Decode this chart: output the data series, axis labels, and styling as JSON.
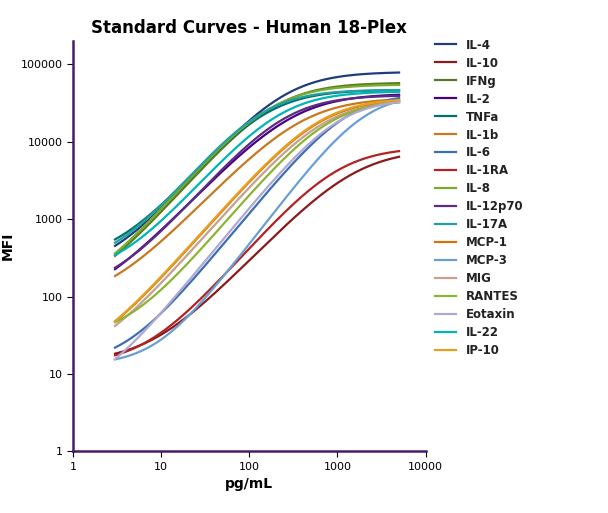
{
  "title": "Standard Curves - Human 18-Plex",
  "xlabel": "pg/mL",
  "ylabel": "MFI",
  "xlim": [
    1,
    10000
  ],
  "ylim": [
    1,
    200000
  ],
  "series": [
    {
      "name": "IL-4",
      "color": "#1f3d7a",
      "logEC50": 2.4,
      "hill": 1.3,
      "bottom": 200,
      "top": 80000
    },
    {
      "name": "IL-10",
      "color": "#8b1a1a",
      "logEC50": 3.2,
      "hill": 1.2,
      "bottom": 14,
      "top": 8000
    },
    {
      "name": "IFNg",
      "color": "#5a7a1f",
      "logEC50": 2.3,
      "hill": 1.3,
      "bottom": 90,
      "top": 58000
    },
    {
      "name": "IL-2",
      "color": "#4b0082",
      "logEC50": 2.5,
      "hill": 1.2,
      "bottom": 70,
      "top": 42000
    },
    {
      "name": "TNFa",
      "color": "#007070",
      "logEC50": 2.2,
      "hill": 1.3,
      "bottom": 280,
      "top": 47000
    },
    {
      "name": "IL-1b",
      "color": "#c87820",
      "logEC50": 2.6,
      "hill": 1.2,
      "bottom": 80,
      "top": 37000
    },
    {
      "name": "IL-6",
      "color": "#3a6eb5",
      "logEC50": 3.1,
      "hill": 1.4,
      "bottom": 13,
      "top": 42000
    },
    {
      "name": "IL-1RA",
      "color": "#b22222",
      "logEC50": 3.0,
      "hill": 1.3,
      "bottom": 13,
      "top": 8500
    },
    {
      "name": "IL-8",
      "color": "#7aab2a",
      "logEC50": 2.25,
      "hill": 1.3,
      "bottom": 90,
      "top": 55000
    },
    {
      "name": "IL-12p70",
      "color": "#5a2d82",
      "logEC50": 2.4,
      "hill": 1.3,
      "bottom": 110,
      "top": 40000
    },
    {
      "name": "IL-17A",
      "color": "#20a0a0",
      "logEC50": 2.15,
      "hill": 1.35,
      "bottom": 240,
      "top": 47000
    },
    {
      "name": "MCP-1",
      "color": "#d4720a",
      "logEC50": 2.8,
      "hill": 1.3,
      "bottom": 13,
      "top": 36000
    },
    {
      "name": "MCP-3",
      "color": "#6a9fd4",
      "logEC50": 3.3,
      "hill": 1.5,
      "bottom": 13,
      "top": 42000
    },
    {
      "name": "MIG",
      "color": "#c8a090",
      "logEC50": 2.85,
      "hill": 1.3,
      "bottom": 13,
      "top": 35000
    },
    {
      "name": "RANTES",
      "color": "#8ab534",
      "logEC50": 2.9,
      "hill": 1.35,
      "bottom": 28,
      "top": 35000
    },
    {
      "name": "Eotaxin",
      "color": "#b0a8d0",
      "logEC50": 3.0,
      "hill": 1.4,
      "bottom": 5,
      "top": 36000
    },
    {
      "name": "IL-22",
      "color": "#00b5b5",
      "logEC50": 2.35,
      "hill": 1.3,
      "bottom": 180,
      "top": 45000
    },
    {
      "name": "IP-10",
      "color": "#e8a020",
      "logEC50": 2.8,
      "hill": 1.3,
      "bottom": 13,
      "top": 37000
    }
  ],
  "title_fontsize": 12,
  "axis_label_fontsize": 10,
  "legend_fontsize": 8.5,
  "linewidth": 1.6,
  "spine_color": "#4a1a6a"
}
